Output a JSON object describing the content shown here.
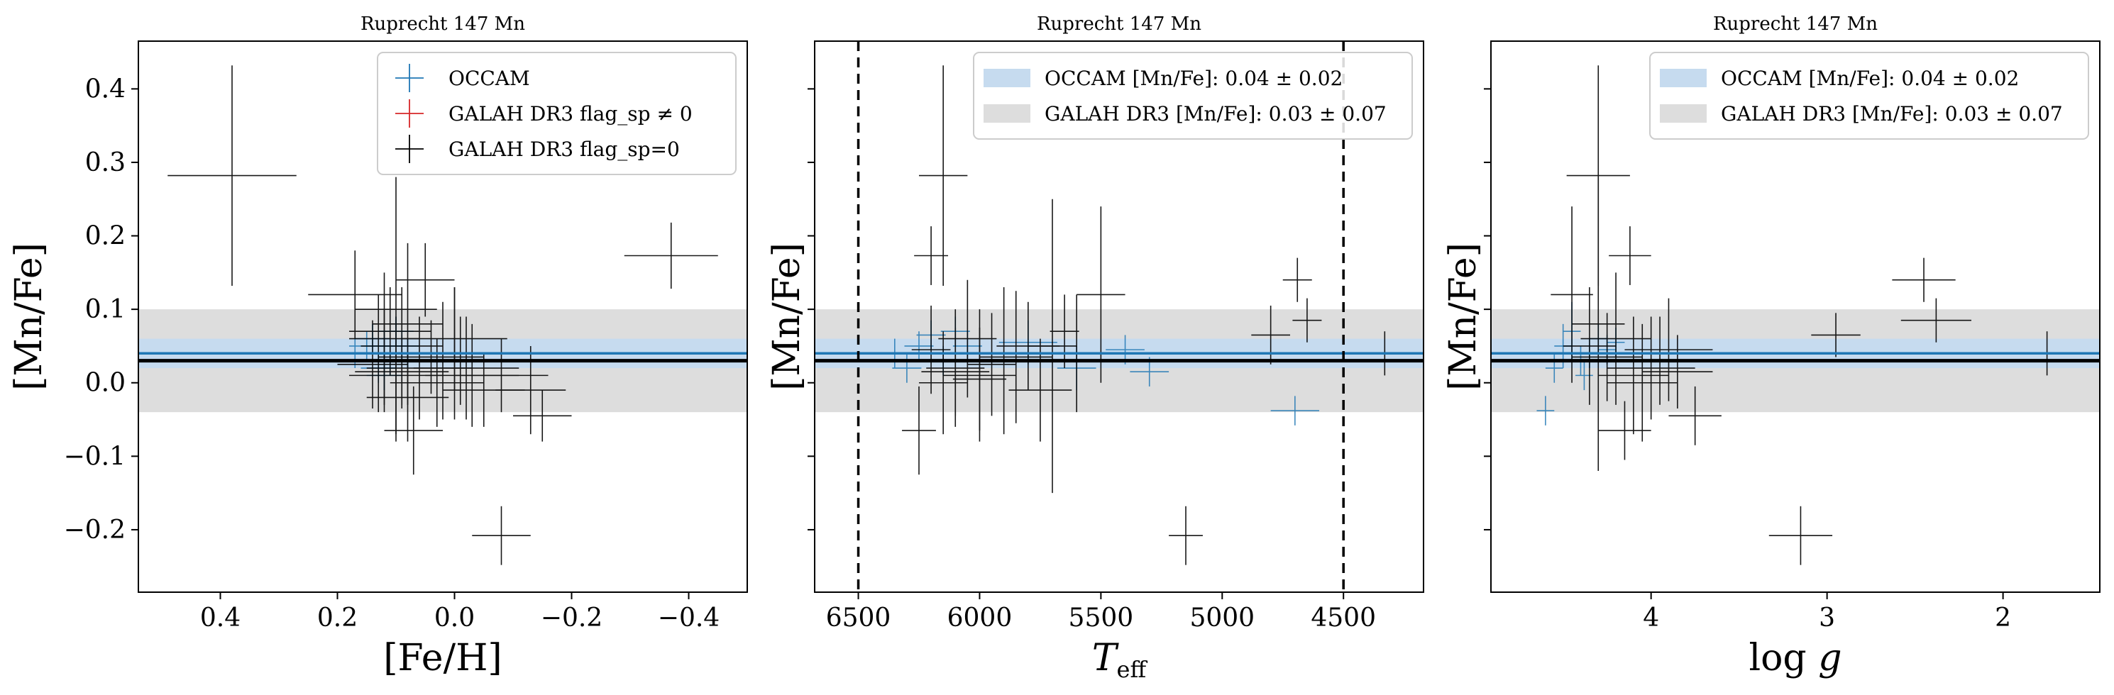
{
  "chart_data": [
    {
      "type": "scatter",
      "title": "Ruprecht 147 Mn",
      "xlabel": "[Fe/H]",
      "ylabel": "[Mn/Fe]",
      "xlim": [
        0.54,
        -0.5
      ],
      "ylim": [
        -0.285,
        0.465
      ],
      "xticks": [
        0.4,
        0.2,
        0.0,
        -0.2,
        -0.4
      ],
      "xtick_labels": [
        "0.4",
        "0.2",
        "0.0",
        "−0.2",
        "−0.4"
      ],
      "yticks": [
        -0.2,
        -0.1,
        0.0,
        0.1,
        0.2,
        0.3,
        0.4
      ],
      "ytick_labels": [
        "−0.2",
        "−0.1",
        "0.0",
        "0.1",
        "0.2",
        "0.3",
        "0.4"
      ],
      "show_yticklabels": true,
      "vlines": [],
      "legend": {
        "placement": "top-right",
        "entries": [
          {
            "kind": "marker",
            "color": "#1f77b4",
            "label": "OCCAM"
          },
          {
            "kind": "marker",
            "color": "#d62728",
            "label": "GALAH DR3 flag_sp ≠ 0"
          },
          {
            "kind": "marker",
            "color": "#000000",
            "label": "GALAH DR3 flag_sp=0"
          }
        ]
      },
      "bands": [
        {
          "name": "GALAH DR3 [Mn/Fe]",
          "center": 0.03,
          "err": 0.07,
          "color": "#dddddd"
        },
        {
          "name": "OCCAM [Mn/Fe]",
          "center": 0.04,
          "err": 0.02,
          "color": "#c6dbef"
        }
      ],
      "series": [
        {
          "name": "OCCAM",
          "color": "#1f77b4",
          "x": [
            0.17,
            0.14,
            0.12,
            0.11,
            0.13,
            0.1,
            0.08,
            0.12,
            0.15,
            0.09
          ],
          "y": [
            0.04,
            0.06,
            0.05,
            0.03,
            0.02,
            0.07,
            0.04,
            0.01,
            0.05,
            0.05
          ],
          "xerr": [
            0.03,
            0.03,
            0.03,
            0.03,
            0.03,
            0.03,
            0.03,
            0.03,
            0.03,
            0.03
          ],
          "yerr": [
            0.02,
            0.02,
            0.02,
            0.02,
            0.02,
            0.02,
            0.02,
            0.02,
            0.02,
            0.02
          ]
        },
        {
          "name": "GALAH DR3 flag_sp=0",
          "color": "#000000",
          "x": [
            0.38,
            -0.37,
            -0.08,
            0.17,
            0.1,
            0.08,
            0.12,
            0.05,
            0.02,
            -0.03,
            -0.13,
            -0.15,
            0.0,
            0.1,
            0.06,
            0.09,
            0.12,
            0.03,
            -0.02,
            -0.05,
            0.07,
            0.11,
            0.04,
            0.14,
            -0.08,
            0.0,
            0.08,
            0.13,
            0.09,
            -0.01
          ],
          "y": [
            0.282,
            0.173,
            -0.208,
            0.12,
            0.1,
            0.08,
            0.06,
            0.14,
            0.03,
            0.01,
            -0.01,
            -0.045,
            0.04,
            0.01,
            0.02,
            0.05,
            0.03,
            0.0,
            0.02,
            -0.01,
            -0.065,
            0.07,
            0.035,
            0.025,
            0.01,
            0.06,
            -0.02,
            0.04,
            0.015,
            0.03
          ],
          "xerr": [
            0.11,
            0.08,
            0.05,
            0.08,
            0.07,
            0.06,
            0.06,
            0.05,
            0.08,
            0.08,
            0.06,
            0.05,
            0.1,
            0.08,
            0.09,
            0.07,
            0.06,
            0.08,
            0.09,
            0.07,
            0.05,
            0.07,
            0.09,
            0.06,
            0.08,
            0.09,
            0.07,
            0.06,
            0.08,
            0.07
          ],
          "yerr": [
            0.15,
            0.045,
            0.04,
            0.06,
            0.18,
            0.11,
            0.09,
            0.05,
            0.08,
            0.07,
            0.06,
            0.035,
            0.09,
            0.08,
            0.07,
            0.08,
            0.07,
            0.06,
            0.07,
            0.05,
            0.06,
            0.06,
            0.05,
            0.06,
            0.05,
            0.07,
            0.06,
            0.08,
            0.05,
            0.06
          ]
        }
      ]
    },
    {
      "type": "scatter",
      "title": "Ruprecht 147 Mn",
      "xlabel": "T_eff",
      "ylabel": "[Mn/Fe]",
      "xlim": [
        6680,
        4170
      ],
      "ylim": [
        -0.285,
        0.465
      ],
      "xticks": [
        6500,
        6000,
        5500,
        5000,
        4500
      ],
      "xtick_labels": [
        "6500",
        "6000",
        "5500",
        "5000",
        "4500"
      ],
      "yticks": [
        -0.2,
        -0.1,
        0.0,
        0.1,
        0.2,
        0.3,
        0.4
      ],
      "ytick_labels": [
        "−0.2",
        "−0.1",
        "0.0",
        "0.1",
        "0.2",
        "0.3",
        "0.4"
      ],
      "show_yticklabels": false,
      "vlines": [
        6500,
        4500
      ],
      "legend": {
        "placement": "top-right",
        "entries": [
          {
            "kind": "patch",
            "color": "#c6dbef",
            "label": "OCCAM [Mn/Fe]: 0.04 ± 0.02"
          },
          {
            "kind": "patch",
            "color": "#dddddd",
            "label": "GALAH DR3 [Mn/Fe]: 0.03 ± 0.07"
          }
        ]
      },
      "bands": [
        {
          "name": "GALAH DR3 [Mn/Fe]",
          "center": 0.03,
          "err": 0.07,
          "color": "#dddddd"
        },
        {
          "name": "OCCAM [Mn/Fe]",
          "center": 0.04,
          "err": 0.02,
          "color": "#c6dbef"
        }
      ],
      "series": [
        {
          "name": "OCCAM",
          "color": "#1f77b4",
          "x": [
            6350,
            6250,
            6200,
            6150,
            6300,
            5800,
            5600,
            5400,
            5300,
            4700,
            6100,
            6050
          ],
          "y": [
            0.04,
            0.05,
            0.065,
            0.03,
            0.02,
            0.055,
            0.02,
            0.045,
            0.015,
            -0.038,
            0.07,
            0.05
          ],
          "xerr": [
            60,
            60,
            60,
            60,
            60,
            120,
            80,
            80,
            80,
            100,
            60,
            60
          ],
          "yerr": [
            0.02,
            0.02,
            0.02,
            0.02,
            0.02,
            0.03,
            0.03,
            0.02,
            0.02,
            0.02,
            0.02,
            0.02
          ]
        },
        {
          "name": "GALAH DR3 flag_sp=0",
          "color": "#000000",
          "x": [
            6150,
            6200,
            5150,
            5500,
            5700,
            4690,
            4650,
            4330,
            6250,
            6100,
            6000,
            5900,
            6050,
            6150,
            5850,
            5750,
            5600,
            6200,
            5950,
            6100,
            4800,
            5650,
            6000,
            5800
          ],
          "y": [
            0.282,
            0.173,
            -0.208,
            0.12,
            0.05,
            0.14,
            0.085,
            0.04,
            -0.065,
            0.02,
            0.01,
            0.03,
            0.06,
            0.0,
            0.035,
            -0.01,
            0.04,
            0.045,
            0.025,
            0.015,
            0.065,
            0.07,
            0.005,
            0.05
          ],
          "xerr": [
            100,
            70,
            70,
            100,
            100,
            60,
            60,
            70,
            70,
            120,
            150,
            150,
            120,
            100,
            150,
            130,
            120,
            80,
            100,
            140,
            80,
            60,
            110,
            130
          ],
          "yerr": [
            0.15,
            0.04,
            0.04,
            0.12,
            0.2,
            0.03,
            0.03,
            0.03,
            0.06,
            0.08,
            0.09,
            0.1,
            0.08,
            0.07,
            0.09,
            0.07,
            0.08,
            0.06,
            0.07,
            0.06,
            0.04,
            0.05,
            0.07,
            0.06
          ]
        }
      ]
    },
    {
      "type": "scatter",
      "title": "Ruprecht 147 Mn",
      "xlabel": "log g",
      "ylabel": "[Mn/Fe]",
      "xlim": [
        4.91,
        1.45
      ],
      "ylim": [
        -0.285,
        0.465
      ],
      "xticks": [
        4,
        3,
        2
      ],
      "xtick_labels": [
        "4",
        "3",
        "2"
      ],
      "yticks": [
        -0.2,
        -0.1,
        0.0,
        0.1,
        0.2,
        0.3,
        0.4
      ],
      "ytick_labels": [
        "−0.2",
        "−0.1",
        "0.0",
        "0.1",
        "0.2",
        "0.3",
        "0.4"
      ],
      "show_yticklabels": false,
      "vlines": [],
      "legend": {
        "placement": "top-right",
        "entries": [
          {
            "kind": "patch",
            "color": "#c6dbef",
            "label": "OCCAM [Mn/Fe]: 0.04 ± 0.02"
          },
          {
            "kind": "patch",
            "color": "#dddddd",
            "label": "GALAH DR3 [Mn/Fe]: 0.03 ± 0.07"
          }
        ]
      },
      "bands": [
        {
          "name": "GALAH DR3 [Mn/Fe]",
          "center": 0.03,
          "err": 0.07,
          "color": "#dddddd"
        },
        {
          "name": "OCCAM [Mn/Fe]",
          "center": 0.04,
          "err": 0.02,
          "color": "#c6dbef"
        }
      ],
      "series": [
        {
          "name": "OCCAM",
          "color": "#1f77b4",
          "x": [
            4.5,
            4.45,
            4.4,
            4.35,
            4.55,
            4.3,
            4.6,
            4.25,
            4.2,
            4.38
          ],
          "y": [
            0.05,
            0.07,
            0.03,
            0.04,
            0.02,
            0.06,
            -0.038,
            0.045,
            0.055,
            0.01
          ],
          "xerr": [
            0.05,
            0.05,
            0.05,
            0.05,
            0.05,
            0.05,
            0.05,
            0.05,
            0.05,
            0.05
          ],
          "yerr": [
            0.03,
            0.04,
            0.02,
            0.02,
            0.02,
            0.02,
            0.02,
            0.02,
            0.02,
            0.02
          ]
        },
        {
          "name": "GALAH DR3 flag_sp=0",
          "color": "#000000",
          "x": [
            4.3,
            4.12,
            3.15,
            4.45,
            2.45,
            2.38,
            2.95,
            1.75,
            4.3,
            4.2,
            4.1,
            4.0,
            3.95,
            4.05,
            4.15,
            3.9,
            4.25,
            4.35,
            3.75,
            3.85
          ],
          "y": [
            0.282,
            0.173,
            -0.208,
            0.12,
            0.14,
            0.085,
            0.065,
            0.04,
            0.08,
            0.06,
            0.01,
            0.02,
            0.03,
            0.0,
            -0.065,
            0.045,
            0.035,
            0.05,
            -0.045,
            0.015
          ],
          "xerr": [
            0.18,
            0.12,
            0.18,
            0.12,
            0.18,
            0.2,
            0.14,
            0.25,
            0.15,
            0.2,
            0.2,
            0.25,
            0.3,
            0.2,
            0.15,
            0.25,
            0.2,
            0.15,
            0.15,
            0.2
          ],
          "yerr": [
            0.15,
            0.04,
            0.04,
            0.12,
            0.03,
            0.03,
            0.03,
            0.03,
            0.2,
            0.09,
            0.08,
            0.07,
            0.06,
            0.08,
            0.04,
            0.07,
            0.06,
            0.08,
            0.04,
            0.05
          ]
        }
      ]
    }
  ]
}
